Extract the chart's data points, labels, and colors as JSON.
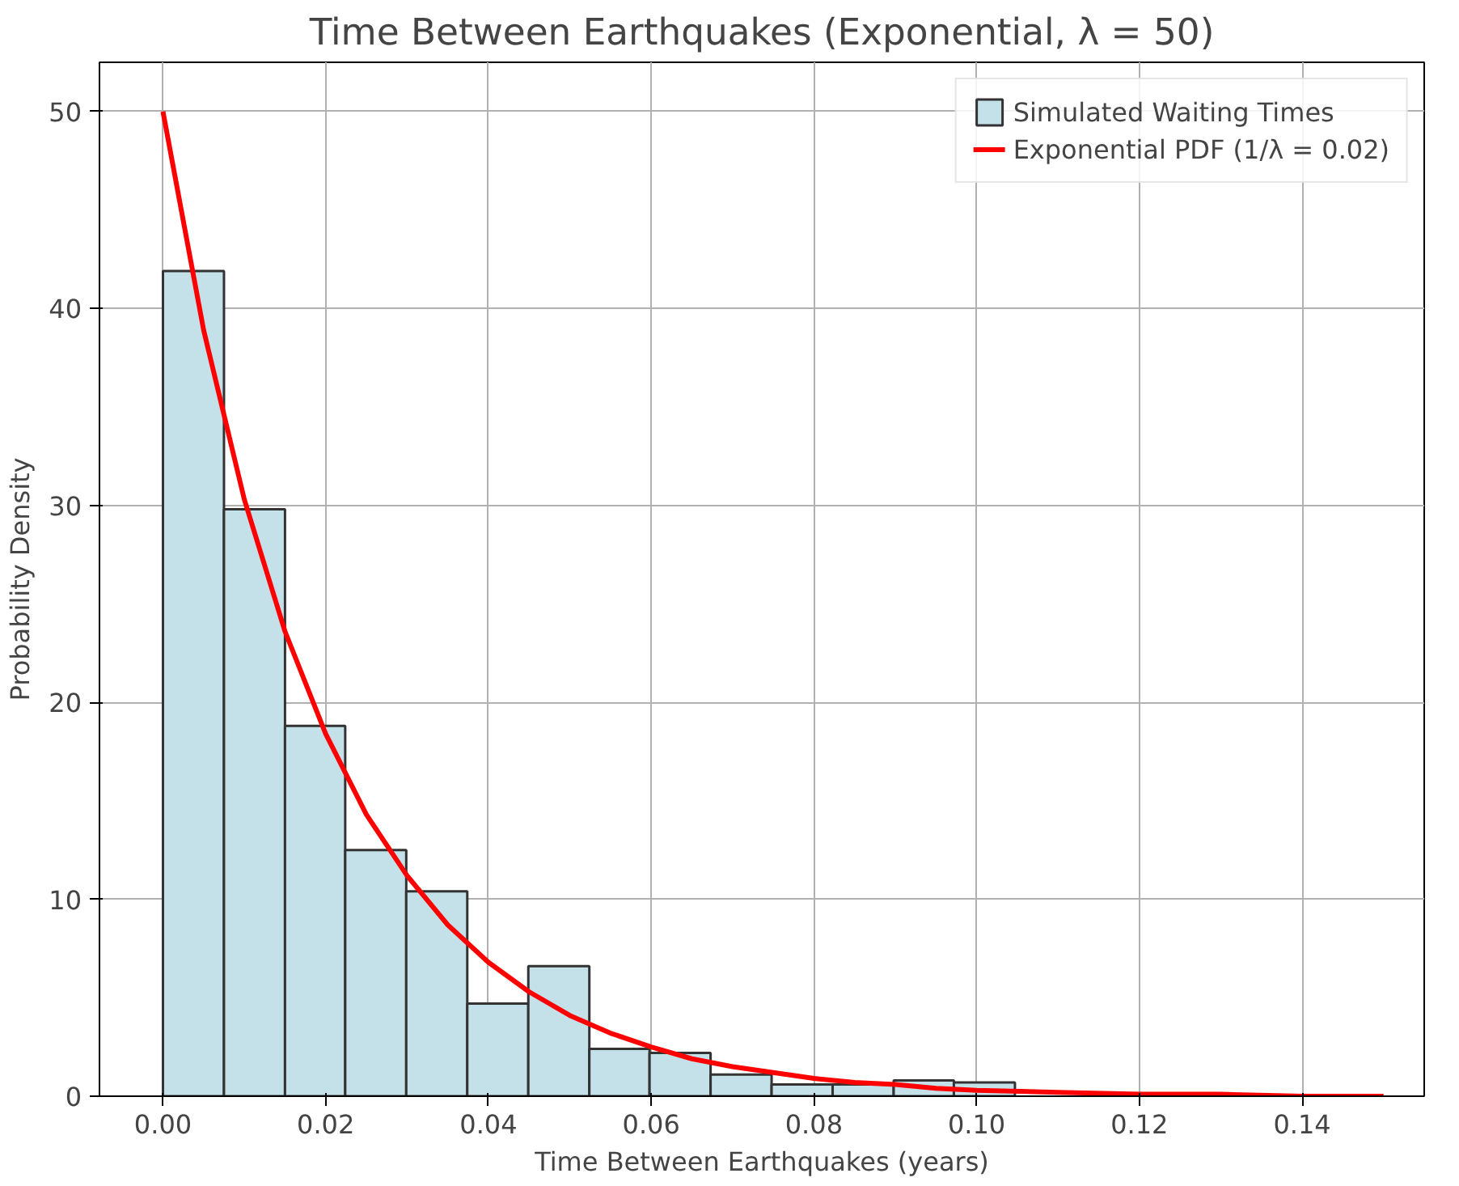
{
  "chart_data": {
    "type": "histogram",
    "title": "Time Between Earthquakes (Exponential, λ = 50)",
    "xlabel": "Time Between Earthquakes (years)",
    "ylabel": "Probability Density",
    "bins": [
      0,
      0.0075,
      0.015,
      0.0224,
      0.0299,
      0.0374,
      0.0449,
      0.0524,
      0.0598,
      0.0673,
      0.0748,
      0.0823,
      0.0898,
      0.0972,
      0.1047
    ],
    "series": [
      {
        "name": "Simulated Waiting Times",
        "color": "#c4e1ea",
        "values": [
          41.9,
          29.8,
          18.8,
          12.5,
          10.4,
          4.7,
          6.6,
          2.4,
          2.2,
          1.1,
          0.6,
          0.6,
          0.8,
          0.7
        ]
      },
      {
        "name": "Exponential PDF (1/λ = 0.02)",
        "type": "line",
        "color": "#ff0000",
        "x": [
          0,
          0.005,
          0.01,
          0.015,
          0.02,
          0.025,
          0.03,
          0.035,
          0.04,
          0.045,
          0.05,
          0.055,
          0.06,
          0.065,
          0.07,
          0.075,
          0.08,
          0.085,
          0.09,
          0.095,
          0.1,
          0.11,
          0.12,
          0.13,
          0.14,
          0.15
        ],
        "values": [
          50,
          38.9,
          30.3,
          23.6,
          18.4,
          14.3,
          11.2,
          8.7,
          6.8,
          5.3,
          4.1,
          3.2,
          2.5,
          1.9,
          1.5,
          1.2,
          0.9,
          0.7,
          0.6,
          0.4,
          0.3,
          0.2,
          0.1,
          0.1,
          0,
          0
        ]
      }
    ],
    "xlim": [
      -0.0078,
      0.155
    ],
    "ylim": [
      0,
      52.5
    ],
    "xticks": [
      {
        "value": 0,
        "label": "0.00"
      },
      0.02,
      0.04,
      0.06,
      0.08,
      {
        "value": 0.1,
        "label": "0.10"
      },
      0.12,
      0.14
    ],
    "yticks": [
      0,
      10,
      20,
      30,
      40,
      50
    ],
    "grid": true,
    "legend": "top right"
  }
}
